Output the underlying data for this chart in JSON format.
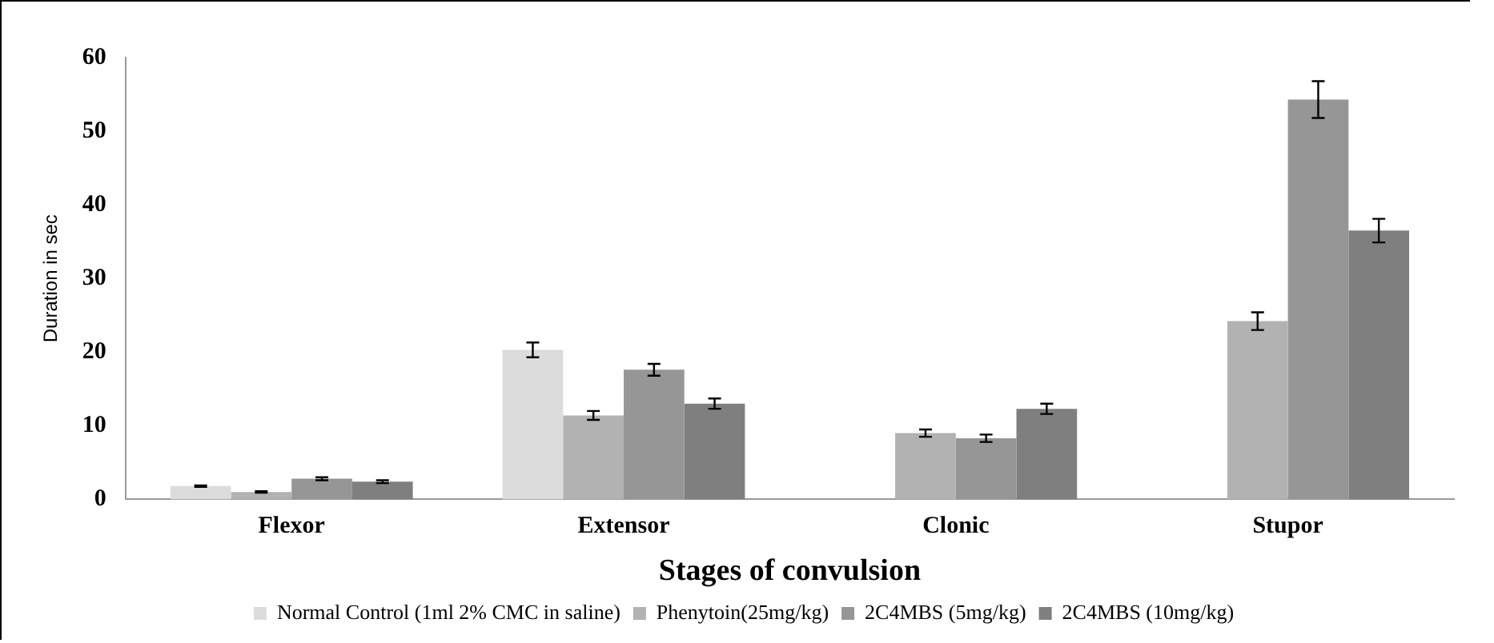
{
  "chart_data": {
    "type": "bar",
    "xlabel": "Stages of convulsion",
    "ylabel": "Duration in sec",
    "categories": [
      "Flexor",
      "Extensor",
      "Clonic",
      "Stupor"
    ],
    "series": [
      {
        "name": "Normal Control (1ml 2% CMC in saline)",
        "color": "#dcdcdc",
        "values": [
          1.8,
          20.3,
          null,
          null
        ],
        "errors": [
          0.1,
          1.0,
          null,
          null
        ]
      },
      {
        "name": "Phenytoin(25mg/kg)",
        "color": "#b2b2b2",
        "values": [
          1.0,
          11.4,
          9.0,
          24.2
        ],
        "errors": [
          0.1,
          0.6,
          0.5,
          1.2
        ]
      },
      {
        "name": "2C4MBS (5mg/kg)",
        "color": "#969696",
        "values": [
          2.8,
          17.6,
          8.3,
          54.3
        ],
        "errors": [
          0.2,
          0.8,
          0.5,
          2.5
        ]
      },
      {
        "name": "2C4MBS (10mg/kg)",
        "color": "#7f7f7f",
        "values": [
          2.4,
          13.0,
          12.3,
          36.5
        ],
        "errors": [
          0.2,
          0.7,
          0.7,
          1.6
        ]
      }
    ],
    "ylim": [
      0,
      60
    ],
    "yticks": [
      0,
      10,
      20,
      30,
      40,
      50,
      60
    ],
    "grid": false,
    "legend": "bottom"
  }
}
